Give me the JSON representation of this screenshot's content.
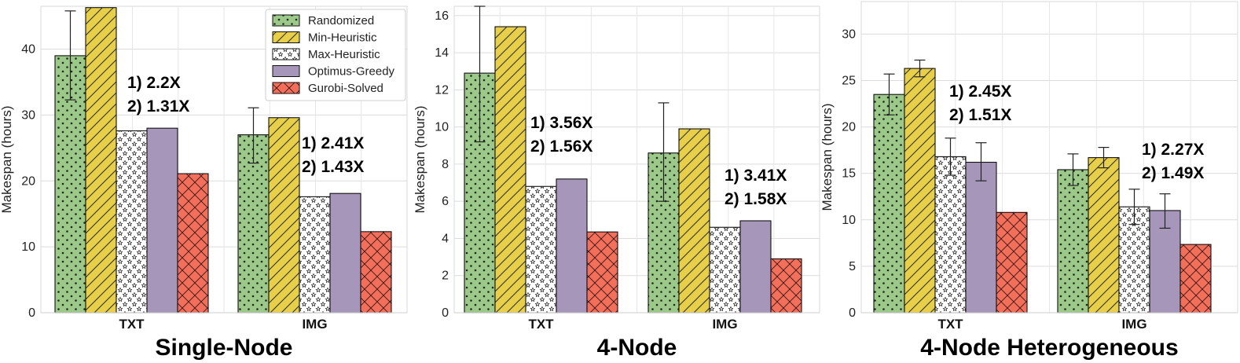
{
  "legend": [
    {
      "name": "Randomized",
      "pattern": "dots",
      "color": "#9cc98a"
    },
    {
      "name": "Min-Heuristic",
      "pattern": "hatch",
      "color": "#e8cf4a"
    },
    {
      "name": "Max-Heuristic",
      "pattern": "stars",
      "color": "#ffffff"
    },
    {
      "name": "Optimus-Greedy",
      "pattern": "solid",
      "color": "#a596ba"
    },
    {
      "name": "Gurobi-Solved",
      "pattern": "cross",
      "color": "#f26f5c"
    }
  ],
  "chart_data": [
    {
      "type": "bar",
      "title": "Single-Node",
      "xlabel": "",
      "ylabel": "Makespan (hours)",
      "ylim": [
        0,
        46.5
      ],
      "yticks": [
        0,
        10,
        20,
        30,
        40
      ],
      "categories": [
        "TXT",
        "IMG"
      ],
      "series": [
        {
          "name": "Randomized",
          "values": [
            39.0,
            27.0
          ],
          "err_low": [
            32.3,
            22.7
          ],
          "err_high": [
            45.8,
            31.1
          ]
        },
        {
          "name": "Min-Heuristic",
          "values": [
            46.3,
            29.6
          ]
        },
        {
          "name": "Max-Heuristic",
          "values": [
            27.6,
            17.6
          ]
        },
        {
          "name": "Optimus-Greedy",
          "values": [
            28.0,
            18.1
          ]
        },
        {
          "name": "Gurobi-Solved",
          "values": [
            21.1,
            12.3
          ]
        }
      ],
      "annotations": [
        {
          "category": "TXT",
          "lines": [
            "1)  2.2X",
            "2) 1.31X"
          ]
        },
        {
          "category": "IMG",
          "lines": [
            "1) 2.41X",
            "2) 1.43X"
          ]
        }
      ],
      "legend_position": "top-right"
    },
    {
      "type": "bar",
      "title": "4-Node",
      "xlabel": "",
      "ylabel": "Makespan (hours)",
      "ylim": [
        0,
        16.5
      ],
      "yticks": [
        0,
        2,
        4,
        6,
        8,
        10,
        12,
        14,
        16
      ],
      "categories": [
        "TXT",
        "IMG"
      ],
      "series": [
        {
          "name": "Randomized",
          "values": [
            12.9,
            8.6
          ],
          "err_low": [
            9.2,
            6.0
          ],
          "err_high": [
            16.5,
            11.3
          ]
        },
        {
          "name": "Min-Heuristic",
          "values": [
            15.4,
            9.9
          ]
        },
        {
          "name": "Max-Heuristic",
          "values": [
            6.8,
            4.6
          ]
        },
        {
          "name": "Optimus-Greedy",
          "values": [
            7.2,
            4.95
          ]
        },
        {
          "name": "Gurobi-Solved",
          "values": [
            4.35,
            2.9
          ]
        }
      ],
      "annotations": [
        {
          "category": "TXT",
          "lines": [
            "1) 3.56X",
            "2) 1.56X"
          ]
        },
        {
          "category": "IMG",
          "lines": [
            "1) 3.41X",
            "2) 1.58X"
          ]
        }
      ]
    },
    {
      "type": "bar",
      "title": "4-Node Heterogeneous",
      "xlabel": "",
      "ylabel": "Makespan (hours)",
      "ylim": [
        0,
        33.5
      ],
      "yticks": [
        0,
        5,
        10,
        15,
        20,
        25,
        30
      ],
      "categories": [
        "TXT",
        "IMG"
      ],
      "series": [
        {
          "name": "Randomized",
          "values": [
            23.5,
            15.4
          ],
          "err_low": [
            21.3,
            13.7
          ],
          "err_high": [
            25.7,
            17.1
          ]
        },
        {
          "name": "Min-Heuristic",
          "values": [
            26.3,
            16.7
          ],
          "err_low": [
            25.4,
            15.6
          ],
          "err_high": [
            27.2,
            17.8
          ]
        },
        {
          "name": "Max-Heuristic",
          "values": [
            16.8,
            11.4
          ],
          "err_low": [
            14.8,
            9.5
          ],
          "err_high": [
            18.8,
            13.3
          ]
        },
        {
          "name": "Optimus-Greedy",
          "values": [
            16.2,
            11.0
          ],
          "err_low": [
            14.2,
            9.1
          ],
          "err_high": [
            18.3,
            12.8
          ]
        },
        {
          "name": "Gurobi-Solved",
          "values": [
            10.8,
            7.35
          ]
        }
      ],
      "annotations": [
        {
          "category": "TXT",
          "lines": [
            "1) 2.45X",
            "2) 1.51X"
          ]
        },
        {
          "category": "IMG",
          "lines": [
            "1) 2.27X",
            "2) 1.49X"
          ]
        }
      ]
    }
  ]
}
